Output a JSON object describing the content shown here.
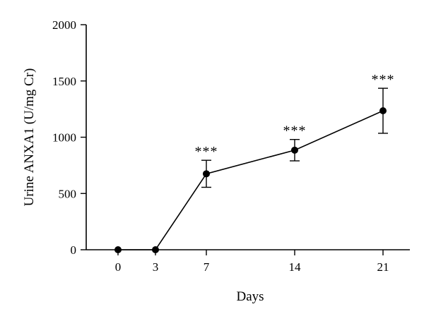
{
  "chart_data": {
    "type": "line",
    "xlabel": "Days",
    "ylabel": "Urine ANXA1 (U/mg Cr)",
    "ylim": [
      0,
      2000
    ],
    "yticks": [
      0,
      500,
      1000,
      1500,
      2000
    ],
    "xticks": [
      0,
      3,
      7,
      14,
      21
    ],
    "grid": false,
    "series": [
      {
        "x": [
          0,
          3,
          7,
          14,
          21
        ],
        "y": [
          0,
          0,
          675,
          885,
          1235
        ],
        "error": [
          0,
          0,
          120,
          95,
          200
        ],
        "annotations": [
          "",
          "",
          "***",
          "***",
          "***"
        ]
      }
    ]
  }
}
